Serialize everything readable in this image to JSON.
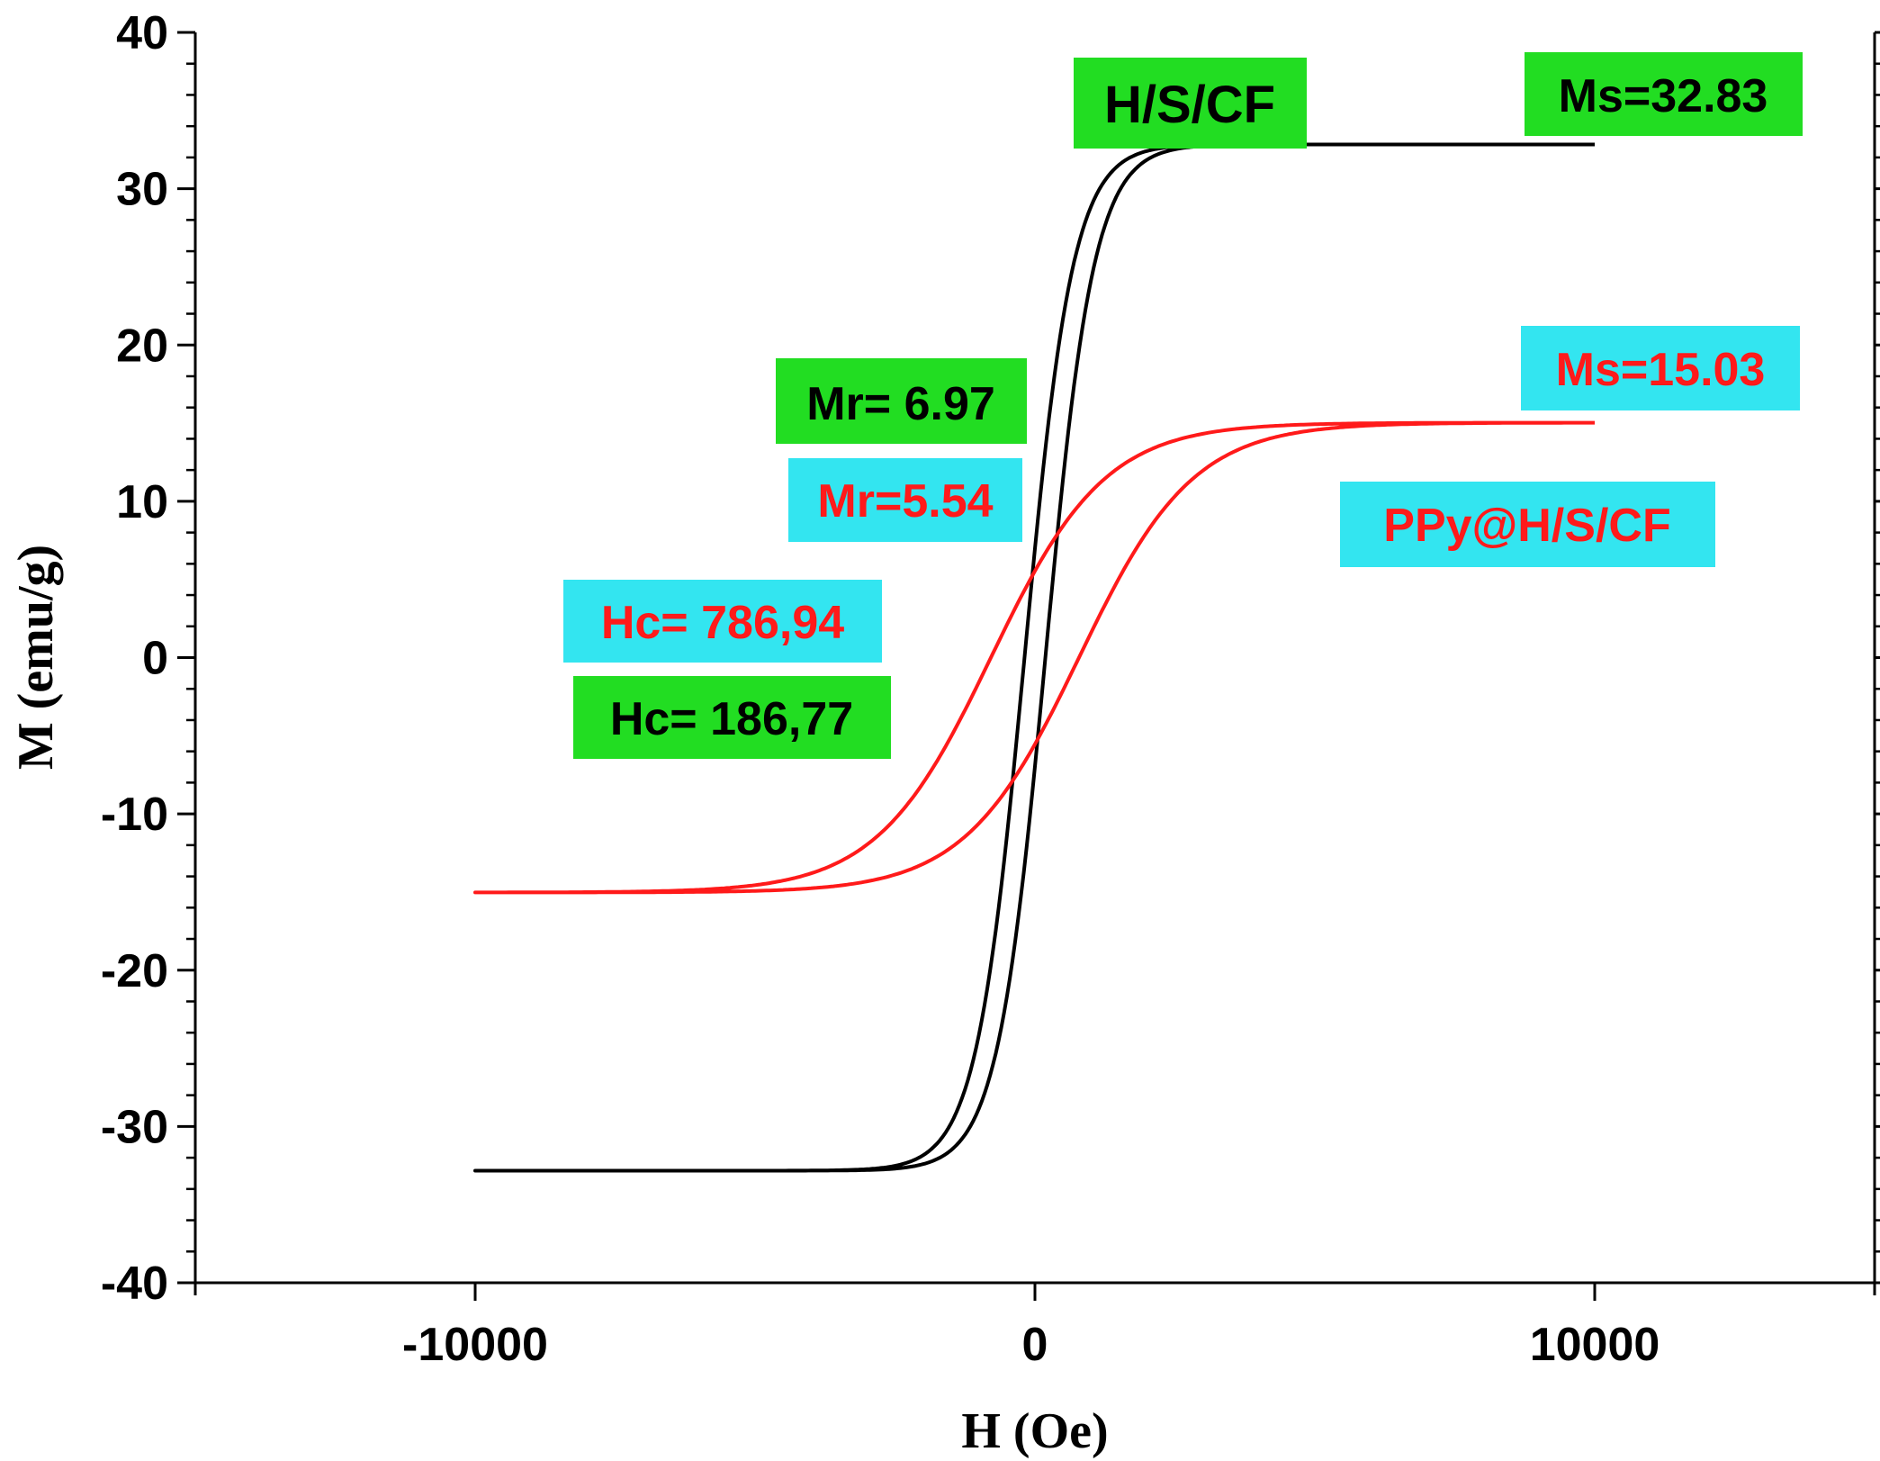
{
  "colors": {
    "background": "#ffffff",
    "axis": "#000000",
    "green_box": "#22dd22",
    "cyan_box": "#33e5f0",
    "series_hsc": "#000000",
    "series_ppy": "#ff1a1a"
  },
  "chart_data": {
    "type": "line",
    "title": "",
    "xlabel": "H (Oe)",
    "ylabel": "M (emu/g)",
    "xlim": [
      -15000,
      15000
    ],
    "ylim": [
      -40,
      40
    ],
    "x_major_ticks": [
      -10000,
      0,
      10000
    ],
    "x_tick_labels": [
      "-10000",
      "0",
      "10000"
    ],
    "y_major_ticks": [
      -40,
      -30,
      -20,
      -10,
      0,
      10,
      20,
      30,
      40
    ],
    "y_tick_labels": [
      "-40",
      "-30",
      "-20",
      "-10",
      "0",
      "10",
      "20",
      "30",
      "40"
    ],
    "grid": false,
    "series": [
      {
        "name": "H/S/CF",
        "color": "#000000",
        "model": "hysteresis-loop",
        "Ms": 32.83,
        "Mr": 6.97,
        "Hc": 186.77,
        "Hmax": 10000
      },
      {
        "name": "PPy@H/S/CF",
        "color": "#ff1a1a",
        "model": "hysteresis-loop",
        "Ms": 15.03,
        "Mr": 5.54,
        "Hc": 786.94,
        "Hmax": 10000
      }
    ],
    "annotations": [
      {
        "id": "hsc_label",
        "text": "H/S/CF",
        "box": "green",
        "text_color": "#000000"
      },
      {
        "id": "ms_hsc",
        "text": "Ms=32.83",
        "box": "green",
        "text_color": "#000000"
      },
      {
        "id": "mr_hsc",
        "text": "Mr= 6.97",
        "box": "green",
        "text_color": "#000000"
      },
      {
        "id": "mr_ppy",
        "text": "Mr=5.54",
        "box": "cyan",
        "text_color": "#ff1a1a"
      },
      {
        "id": "ms_ppy",
        "text": "Ms=15.03",
        "box": "cyan",
        "text_color": "#ff1a1a"
      },
      {
        "id": "ppy_label",
        "text": "PPy@H/S/CF",
        "box": "cyan",
        "text_color": "#ff1a1a"
      },
      {
        "id": "hc_ppy",
        "text": "Hc= 786,94",
        "box": "cyan",
        "text_color": "#ff1a1a"
      },
      {
        "id": "hc_hsc",
        "text": "Hc= 186,77",
        "box": "green",
        "text_color": "#000000"
      }
    ]
  }
}
